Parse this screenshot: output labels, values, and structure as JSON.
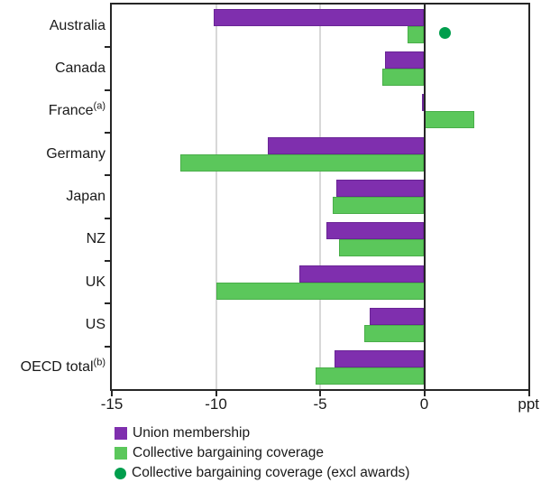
{
  "chart": {
    "unit_label": "ppt",
    "colors": {
      "union_membership": "#7f2fae",
      "collective_bargaining": "#5bc75b",
      "collective_bargaining_excl_awards": "#009e4d",
      "gridline": "#d8d8d8",
      "axis": "#262626"
    },
    "legend": [
      {
        "label": "Union membership",
        "swatch": "square"
      },
      {
        "label": "Collective bargaining coverage",
        "swatch": "square"
      },
      {
        "label": "Collective bargaining coverage (excl awards)",
        "swatch": "circle"
      }
    ]
  },
  "chart_data": {
    "type": "bar",
    "orientation": "horizontal",
    "title": "",
    "xlabel_unit": "ppt",
    "xlim": [
      -15,
      5
    ],
    "x_ticks": [
      -15,
      -10,
      -5,
      0
    ],
    "grid_x": [
      -10,
      -5
    ],
    "zero_line": 0,
    "legend_position": "bottom-left",
    "categories": [
      {
        "label": "Australia",
        "sup": ""
      },
      {
        "label": "Canada",
        "sup": ""
      },
      {
        "label": "France",
        "sup": "(a)"
      },
      {
        "label": "Germany",
        "sup": ""
      },
      {
        "label": "Japan",
        "sup": ""
      },
      {
        "label": "NZ",
        "sup": ""
      },
      {
        "label": "UK",
        "sup": ""
      },
      {
        "label": "US",
        "sup": ""
      },
      {
        "label": "OECD total",
        "sup": "(b)"
      }
    ],
    "series": [
      {
        "name": "Union membership",
        "type": "bar",
        "values": [
          -10.1,
          -1.9,
          -0.1,
          -7.5,
          -4.2,
          -4.7,
          -6.0,
          -2.6,
          -4.3
        ]
      },
      {
        "name": "Collective bargaining coverage",
        "type": "bar",
        "values": [
          -0.8,
          -2.0,
          2.4,
          -11.7,
          -4.4,
          -4.1,
          -10.0,
          -2.9,
          -5.2
        ]
      },
      {
        "name": "Collective bargaining coverage (excl awards)",
        "type": "point",
        "values": [
          1.0,
          null,
          null,
          null,
          null,
          null,
          null,
          null,
          null
        ]
      }
    ]
  }
}
